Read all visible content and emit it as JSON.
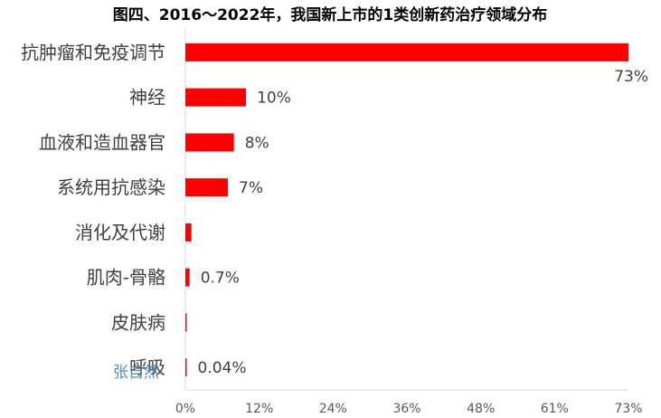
{
  "chart_data": {
    "type": "bar",
    "orientation": "horizontal",
    "title": "图四、2016～2022年，我国新上市的1类创新药治疗领域分布",
    "categories": [
      "抗肿瘤和免疫调节",
      "神经",
      "血液和造血器官",
      "系统用抗感染",
      "消化及代谢",
      "肌肉-骨骼",
      "皮肤病",
      "呼吸"
    ],
    "values": [
      73,
      10,
      8,
      7,
      1,
      0.7,
      0.1,
      0.04
    ],
    "data_labels": [
      "73%",
      "10%",
      "8%",
      "7%",
      "",
      "0.7%",
      "",
      "0.04%"
    ],
    "xlim": [
      0,
      73
    ],
    "x_ticks": [
      "0%",
      "12%",
      "24%",
      "36%",
      "48%",
      "61%",
      "73%"
    ],
    "bar_color": "#ff0000",
    "grid": false,
    "legend": "none"
  },
  "watermark": "张自然"
}
